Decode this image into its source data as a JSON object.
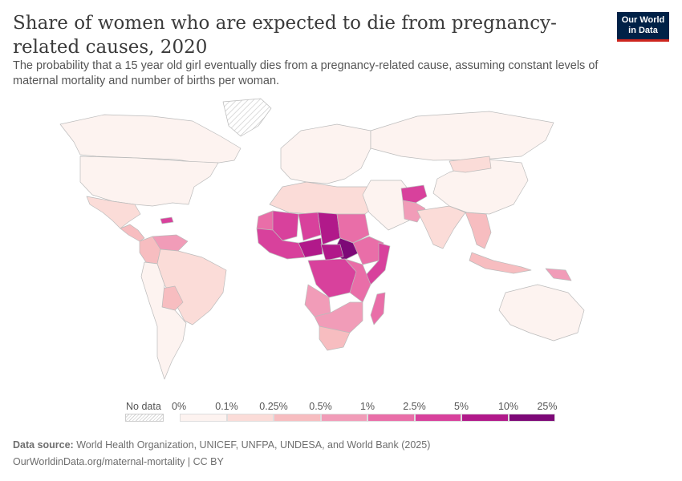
{
  "title": "Share of women who are expected to die from pregnancy-related causes, 2020",
  "subtitle": "The probability that a 15 year old girl eventually dies from a pregnancy-related cause, assuming constant levels of maternal mortality and number of births per woman.",
  "logo": {
    "line1": "Our World",
    "line2": "in Data"
  },
  "legend": {
    "no_data_label": "No data",
    "bins": [
      {
        "from_label": "0%",
        "color": "#fdf3f0"
      },
      {
        "from_label": "0.1%",
        "color": "#fbdcd8"
      },
      {
        "from_label": "0.25%",
        "color": "#f7bdc0"
      },
      {
        "from_label": "0.5%",
        "color": "#f19cb8"
      },
      {
        "from_label": "1%",
        "color": "#e96ea8"
      },
      {
        "from_label": "2.5%",
        "color": "#d8419c"
      },
      {
        "from_label": "5%",
        "color": "#b1198a"
      },
      {
        "from_label": "10%",
        "color": "#7d0877"
      }
    ],
    "end_label": "25%"
  },
  "source": {
    "label": "Data source:",
    "text": "World Health Organization, UNICEF, UNFPA, UNDESA, and World Bank (2025)"
  },
  "footer": "OurWorldinData.org/maternal-mortality | CC BY",
  "map": {
    "regions": [
      {
        "name": "Greenland",
        "bin": "none"
      },
      {
        "name": "Canada",
        "bin": 0
      },
      {
        "name": "United States",
        "bin": 0
      },
      {
        "name": "Mexico",
        "bin": 1
      },
      {
        "name": "Central America",
        "bin": 2
      },
      {
        "name": "Haiti",
        "bin": 5
      },
      {
        "name": "Venezuela",
        "bin": 3
      },
      {
        "name": "Colombia",
        "bin": 2
      },
      {
        "name": "Brazil",
        "bin": 1
      },
      {
        "name": "Bolivia",
        "bin": 2
      },
      {
        "name": "Southern Cone",
        "bin": 0
      },
      {
        "name": "Europe",
        "bin": 0
      },
      {
        "name": "Russia",
        "bin": 0
      },
      {
        "name": "North Africa",
        "bin": 1
      },
      {
        "name": "Mauritania",
        "bin": 4
      },
      {
        "name": "Mali",
        "bin": 5
      },
      {
        "name": "Niger",
        "bin": 5
      },
      {
        "name": "Chad",
        "bin": 6
      },
      {
        "name": "Nigeria",
        "bin": 6
      },
      {
        "name": "West Africa",
        "bin": 5
      },
      {
        "name": "Sudan",
        "bin": 4
      },
      {
        "name": "South Sudan",
        "bin": 7
      },
      {
        "name": "Central African Republic",
        "bin": 6
      },
      {
        "name": "Ethiopia",
        "bin": 4
      },
      {
        "name": "Somalia",
        "bin": 5
      },
      {
        "name": "DR Congo",
        "bin": 5
      },
      {
        "name": "East Africa",
        "bin": 4
      },
      {
        "name": "Angola",
        "bin": 3
      },
      {
        "name": "Southern Africa",
        "bin": 3
      },
      {
        "name": "South Africa",
        "bin": 2
      },
      {
        "name": "Madagascar",
        "bin": 4
      },
      {
        "name": "Middle East",
        "bin": 0
      },
      {
        "name": "Afghanistan",
        "bin": 5
      },
      {
        "name": "Pakistan",
        "bin": 3
      },
      {
        "name": "India",
        "bin": 1
      },
      {
        "name": "China",
        "bin": 0
      },
      {
        "name": "Mongolia",
        "bin": 1
      },
      {
        "name": "Southeast Asia",
        "bin": 2
      },
      {
        "name": "Indonesia",
        "bin": 2
      },
      {
        "name": "Papua New Guinea",
        "bin": 3
      },
      {
        "name": "Australia",
        "bin": 0
      }
    ]
  }
}
